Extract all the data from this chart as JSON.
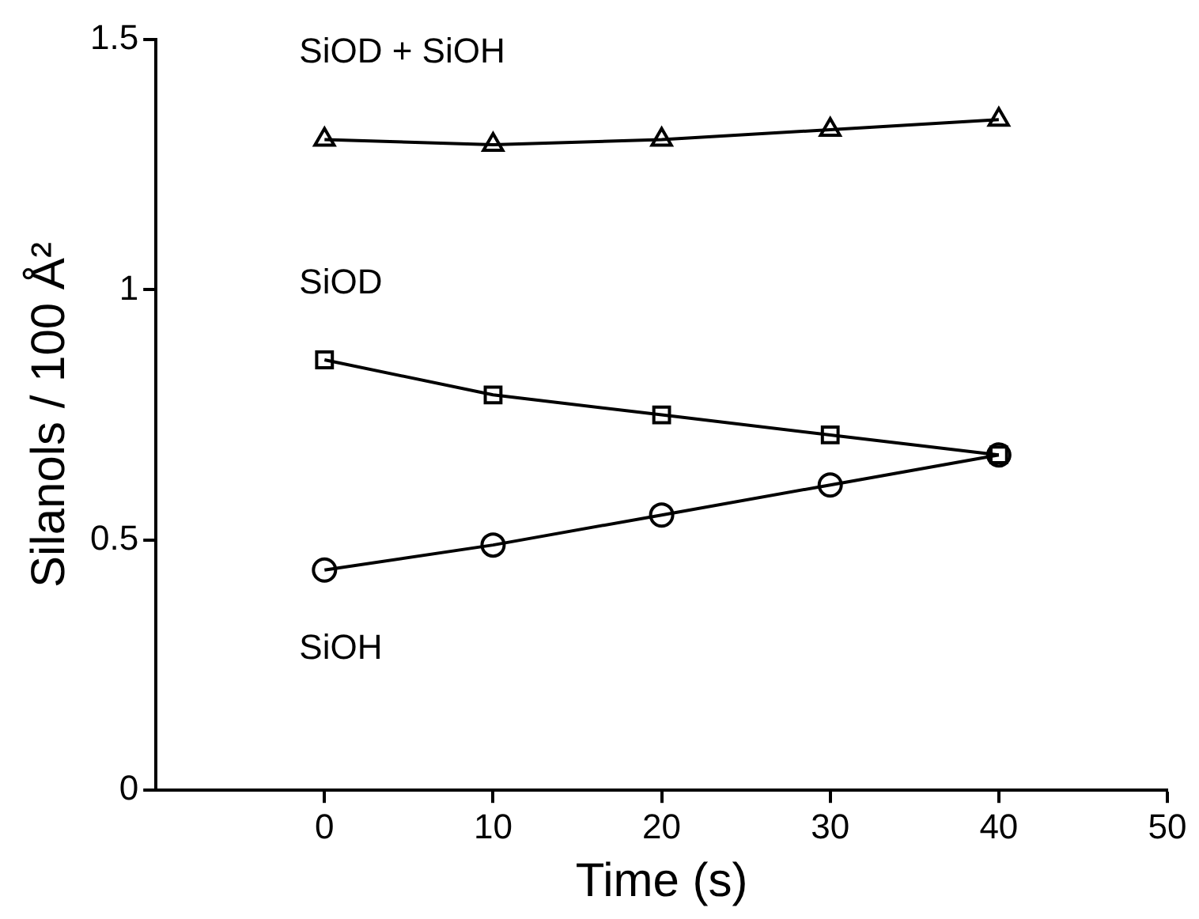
{
  "chart_data": {
    "type": "line",
    "xlabel": "Time (s)",
    "ylabel": "Silanols / 100 Å²",
    "x": [
      0,
      10,
      20,
      30,
      40
    ],
    "series": [
      {
        "name": "SiOD + SiOH",
        "color": "#000000",
        "marker": "triangle",
        "values": [
          1.3,
          1.29,
          1.3,
          1.32,
          1.34
        ]
      },
      {
        "name": "SiOD",
        "color": "#000000",
        "marker": "square",
        "values": [
          0.86,
          0.79,
          0.75,
          0.71,
          0.67
        ]
      },
      {
        "name": "SiOH",
        "color": "#000000",
        "marker": "circle",
        "values": [
          0.44,
          0.49,
          0.55,
          0.61,
          0.67
        ]
      }
    ],
    "xlim": [
      -10,
      50
    ],
    "xticks": [
      0,
      10,
      20,
      30,
      40,
      50
    ],
    "ylim": [
      0,
      1.5
    ],
    "yticks": [
      0,
      0.5,
      1,
      1.5
    ],
    "grid": false,
    "legend": false,
    "line_style": "solid"
  }
}
